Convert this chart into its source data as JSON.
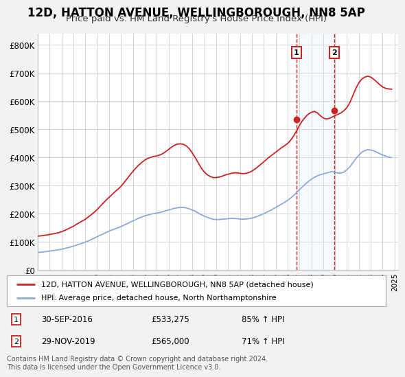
{
  "title": "12D, HATTON AVENUE, WELLINGBOROUGH, NN8 5AP",
  "subtitle": "Price paid vs. HM Land Registry's House Price Index (HPI)",
  "title_fontsize": 12,
  "subtitle_fontsize": 9.5,
  "background_color": "#f2f2f2",
  "plot_bg_color": "#ffffff",
  "grid_color": "#cccccc",
  "ylabel_ticks": [
    "£0",
    "£100K",
    "£200K",
    "£300K",
    "£400K",
    "£500K",
    "£600K",
    "£700K",
    "£800K"
  ],
  "ytick_values": [
    0,
    100000,
    200000,
    300000,
    400000,
    500000,
    600000,
    700000,
    800000
  ],
  "ylim": [
    0,
    840000
  ],
  "xlim_start": 1995.0,
  "xlim_end": 2025.3,
  "xtick_years": [
    1995,
    1996,
    1997,
    1998,
    1999,
    2000,
    2001,
    2002,
    2003,
    2004,
    2005,
    2006,
    2007,
    2008,
    2009,
    2010,
    2011,
    2012,
    2013,
    2014,
    2015,
    2016,
    2017,
    2018,
    2019,
    2020,
    2021,
    2022,
    2023,
    2024,
    2025
  ],
  "red_line_color": "#cc2222",
  "blue_line_color": "#88aadd",
  "shade_color": "#ddeeff",
  "marker1_x": 2016.75,
  "marker1_y": 533275,
  "marker2_x": 2019.92,
  "marker2_y": 565000,
  "marker_box_color": "#cc2222",
  "dot_color": "#cc2222",
  "legend_entries": [
    "12D, HATTON AVENUE, WELLINGBOROUGH, NN8 5AP (detached house)",
    "HPI: Average price, detached house, North Northamptonshire"
  ],
  "sale1_date": "30-SEP-2016",
  "sale1_price": "£533,275",
  "sale1_hpi": "85% ↑ HPI",
  "sale2_date": "29-NOV-2019",
  "sale2_price": "£565,000",
  "sale2_hpi": "71% ↑ HPI",
  "footer": "Contains HM Land Registry data © Crown copyright and database right 2024.\nThis data is licensed under the Open Government Licence v3.0.",
  "red_x": [
    1995.0,
    1995.25,
    1995.5,
    1995.75,
    1996.0,
    1996.25,
    1996.5,
    1996.75,
    1997.0,
    1997.25,
    1997.5,
    1997.75,
    1998.0,
    1998.25,
    1998.5,
    1998.75,
    1999.0,
    1999.25,
    1999.5,
    1999.75,
    2000.0,
    2000.25,
    2000.5,
    2000.75,
    2001.0,
    2001.25,
    2001.5,
    2001.75,
    2002.0,
    2002.25,
    2002.5,
    2002.75,
    2003.0,
    2003.25,
    2003.5,
    2003.75,
    2004.0,
    2004.25,
    2004.5,
    2004.75,
    2005.0,
    2005.25,
    2005.5,
    2005.75,
    2006.0,
    2006.25,
    2006.5,
    2006.75,
    2007.0,
    2007.25,
    2007.5,
    2007.75,
    2008.0,
    2008.25,
    2008.5,
    2008.75,
    2009.0,
    2009.25,
    2009.5,
    2009.75,
    2010.0,
    2010.25,
    2010.5,
    2010.75,
    2011.0,
    2011.25,
    2011.5,
    2011.75,
    2012.0,
    2012.25,
    2012.5,
    2012.75,
    2013.0,
    2013.25,
    2013.5,
    2013.75,
    2014.0,
    2014.25,
    2014.5,
    2014.75,
    2015.0,
    2015.25,
    2015.5,
    2015.75,
    2016.0,
    2016.25,
    2016.5,
    2016.75,
    2017.0,
    2017.25,
    2017.5,
    2017.75,
    2018.0,
    2018.25,
    2018.5,
    2018.75,
    2019.0,
    2019.25,
    2019.5,
    2019.75,
    2020.0,
    2020.25,
    2020.5,
    2020.75,
    2021.0,
    2021.25,
    2021.5,
    2021.75,
    2022.0,
    2022.25,
    2022.5,
    2022.75,
    2023.0,
    2023.25,
    2023.5,
    2023.75,
    2024.0,
    2024.25,
    2024.5,
    2024.75
  ],
  "red_y": [
    120000,
    121000,
    122500,
    124000,
    126000,
    128000,
    130000,
    132000,
    136000,
    140000,
    145000,
    150000,
    155000,
    162000,
    168000,
    174000,
    180000,
    188000,
    196000,
    205000,
    215000,
    226000,
    237000,
    248000,
    258000,
    268000,
    278000,
    287000,
    297000,
    310000,
    323000,
    337000,
    350000,
    362000,
    373000,
    382000,
    390000,
    396000,
    400000,
    403000,
    405000,
    408000,
    413000,
    420000,
    428000,
    436000,
    443000,
    447000,
    448000,
    446000,
    440000,
    430000,
    415000,
    398000,
    380000,
    362000,
    348000,
    338000,
    332000,
    328000,
    328000,
    330000,
    333000,
    337000,
    340000,
    343000,
    345000,
    345000,
    343000,
    342000,
    343000,
    346000,
    351000,
    358000,
    366000,
    375000,
    384000,
    393000,
    402000,
    410000,
    418000,
    426000,
    434000,
    441000,
    449000,
    460000,
    475000,
    493000,
    513000,
    530000,
    543000,
    553000,
    560000,
    563000,
    558000,
    548000,
    540000,
    536000,
    538000,
    543000,
    548000,
    553000,
    558000,
    566000,
    577000,
    595000,
    620000,
    645000,
    665000,
    678000,
    685000,
    688000,
    685000,
    677000,
    668000,
    658000,
    650000,
    645000,
    643000,
    642000
  ],
  "blue_x": [
    1995.0,
    1995.25,
    1995.5,
    1995.75,
    1996.0,
    1996.25,
    1996.5,
    1996.75,
    1997.0,
    1997.25,
    1997.5,
    1997.75,
    1998.0,
    1998.25,
    1998.5,
    1998.75,
    1999.0,
    1999.25,
    1999.5,
    1999.75,
    2000.0,
    2000.25,
    2000.5,
    2000.75,
    2001.0,
    2001.25,
    2001.5,
    2001.75,
    2002.0,
    2002.25,
    2002.5,
    2002.75,
    2003.0,
    2003.25,
    2003.5,
    2003.75,
    2004.0,
    2004.25,
    2004.5,
    2004.75,
    2005.0,
    2005.25,
    2005.5,
    2005.75,
    2006.0,
    2006.25,
    2006.5,
    2006.75,
    2007.0,
    2007.25,
    2007.5,
    2007.75,
    2008.0,
    2008.25,
    2008.5,
    2008.75,
    2009.0,
    2009.25,
    2009.5,
    2009.75,
    2010.0,
    2010.25,
    2010.5,
    2010.75,
    2011.0,
    2011.25,
    2011.5,
    2011.75,
    2012.0,
    2012.25,
    2012.5,
    2012.75,
    2013.0,
    2013.25,
    2013.5,
    2013.75,
    2014.0,
    2014.25,
    2014.5,
    2014.75,
    2015.0,
    2015.25,
    2015.5,
    2015.75,
    2016.0,
    2016.25,
    2016.5,
    2016.75,
    2017.0,
    2017.25,
    2017.5,
    2017.75,
    2018.0,
    2018.25,
    2018.5,
    2018.75,
    2019.0,
    2019.25,
    2019.5,
    2019.75,
    2020.0,
    2020.25,
    2020.5,
    2020.75,
    2021.0,
    2021.25,
    2021.5,
    2021.75,
    2022.0,
    2022.25,
    2022.5,
    2022.75,
    2023.0,
    2023.25,
    2023.5,
    2023.75,
    2024.0,
    2024.25,
    2024.5,
    2024.75
  ],
  "blue_y": [
    62000,
    63000,
    64000,
    65500,
    67000,
    68500,
    70000,
    71500,
    73500,
    76000,
    78500,
    81500,
    84500,
    88000,
    91500,
    95000,
    99000,
    103000,
    108000,
    113000,
    118000,
    123000,
    128000,
    133000,
    138000,
    142000,
    146000,
    150000,
    154000,
    159000,
    164000,
    169000,
    174000,
    179000,
    184000,
    188000,
    192000,
    195000,
    198000,
    200000,
    202000,
    204000,
    207000,
    210000,
    213000,
    216000,
    219000,
    221000,
    222000,
    222000,
    220000,
    217000,
    213000,
    208000,
    202000,
    196000,
    191000,
    187000,
    183000,
    180000,
    179000,
    179000,
    180000,
    181000,
    182000,
    183000,
    183000,
    182000,
    181000,
    180000,
    181000,
    182000,
    184000,
    187000,
    191000,
    195000,
    200000,
    205000,
    210000,
    216000,
    222000,
    228000,
    234000,
    240000,
    247000,
    255000,
    264000,
    274000,
    285000,
    295000,
    305000,
    314000,
    322000,
    329000,
    334000,
    338000,
    341000,
    344000,
    347000,
    350000,
    347000,
    344000,
    344000,
    348000,
    356000,
    367000,
    381000,
    395000,
    408000,
    418000,
    424000,
    427000,
    426000,
    423000,
    418000,
    413000,
    408000,
    404000,
    401000,
    399000
  ]
}
